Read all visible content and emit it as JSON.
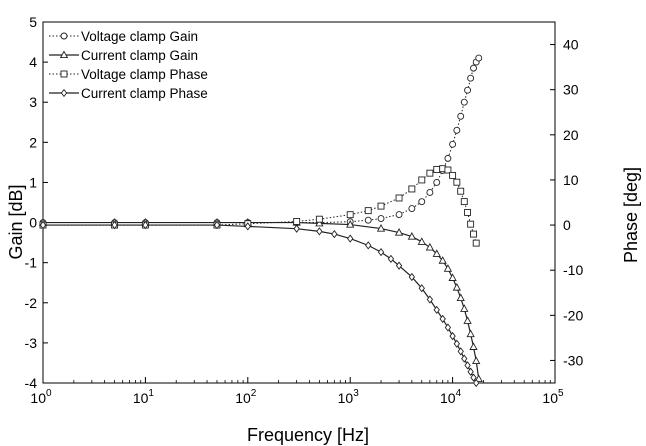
{
  "chart_data": {
    "type": "line",
    "title": "",
    "xlabel": "Frequency [Hz]",
    "ylabel_left": "Gain [dB]",
    "ylabel_right": "Phase [deg]",
    "x_scale": "log",
    "xlim": [
      1,
      100000
    ],
    "ylim_left": [
      -4,
      5
    ],
    "ylim_right": [
      -35,
      45
    ],
    "x_tick_labels": [
      {
        "base": "10",
        "exp": "0"
      },
      {
        "base": "10",
        "exp": "1"
      },
      {
        "base": "10",
        "exp": "2"
      },
      {
        "base": "10",
        "exp": "3"
      },
      {
        "base": "10",
        "exp": "4"
      },
      {
        "base": "10",
        "exp": "5"
      }
    ],
    "y_left_ticks": [
      "5",
      "4",
      "3",
      "2",
      "1",
      "0",
      "-1",
      "-2",
      "-3",
      "-4"
    ],
    "y_right_ticks": [
      "40",
      "30",
      "20",
      "10",
      "0",
      "-10",
      "-20",
      "-30"
    ],
    "grid": false,
    "legend_position": "top-left",
    "series": [
      {
        "name": "Voltage clamp Gain",
        "axis": "left",
        "line": "dotted",
        "marker": "circle",
        "x": [
          1,
          5,
          10,
          50,
          100,
          300,
          500,
          1000,
          1500,
          2000,
          3000,
          4000,
          5000,
          6000,
          7000,
          8000,
          9000,
          10000,
          11000,
          12000,
          13000,
          14000,
          15000,
          16000,
          17000,
          18000
        ],
        "y": [
          0,
          0,
          0,
          0,
          0,
          0,
          0,
          0.02,
          0.06,
          0.1,
          0.2,
          0.35,
          0.52,
          0.75,
          1.0,
          1.3,
          1.6,
          1.95,
          2.3,
          2.65,
          3.0,
          3.3,
          3.6,
          3.85,
          4.0,
          4.1
        ]
      },
      {
        "name": "Current clamp Gain",
        "axis": "left",
        "line": "solid",
        "marker": "triangle",
        "x": [
          1,
          5,
          10,
          50,
          100,
          300,
          500,
          1000,
          2000,
          3000,
          4000,
          5000,
          6000,
          7000,
          8000,
          9000,
          10000,
          11000,
          12000,
          13000,
          14000,
          15000,
          16000,
          17000,
          18000
        ],
        "y": [
          0,
          0,
          0,
          0,
          0,
          0,
          -0.02,
          -0.05,
          -0.15,
          -0.25,
          -0.35,
          -0.48,
          -0.62,
          -0.78,
          -0.95,
          -1.15,
          -1.38,
          -1.62,
          -1.88,
          -2.15,
          -2.45,
          -2.78,
          -3.1,
          -3.45,
          -3.9
        ]
      },
      {
        "name": "Voltage clamp Phase",
        "axis": "right",
        "line": "dotted",
        "marker": "square",
        "x": [
          1,
          5,
          10,
          50,
          100,
          300,
          500,
          1000,
          1500,
          2000,
          3000,
          4000,
          5000,
          6000,
          7000,
          8000,
          9000,
          10000,
          11000,
          12000,
          13000,
          14000,
          15000,
          16000,
          17000
        ],
        "y": [
          0,
          0,
          0,
          0,
          0.3,
          0.8,
          1.3,
          2.3,
          3.2,
          4.2,
          6.0,
          8.0,
          10.0,
          11.5,
          12.3,
          12.5,
          12.2,
          11.0,
          9.5,
          7.5,
          5.2,
          2.8,
          0.2,
          -2.0,
          -4.0
        ]
      },
      {
        "name": "Current clamp Phase",
        "axis": "right",
        "line": "solid",
        "marker": "diamond",
        "x": [
          1,
          5,
          10,
          50,
          100,
          300,
          500,
          700,
          1000,
          1500,
          2000,
          2500,
          3000,
          4000,
          5000,
          6000,
          7000,
          8000,
          9000,
          10000,
          11000,
          12000,
          13000,
          14000,
          15000,
          16000,
          17000
        ],
        "y": [
          0,
          0,
          0,
          0,
          -0.3,
          -0.8,
          -1.4,
          -2.0,
          -3.0,
          -4.5,
          -6.0,
          -7.5,
          -9.0,
          -11.5,
          -14.0,
          -16.5,
          -18.8,
          -20.8,
          -22.7,
          -24.6,
          -26.3,
          -28.0,
          -29.6,
          -31.1,
          -32.5,
          -33.8,
          -35.0
        ]
      }
    ]
  }
}
